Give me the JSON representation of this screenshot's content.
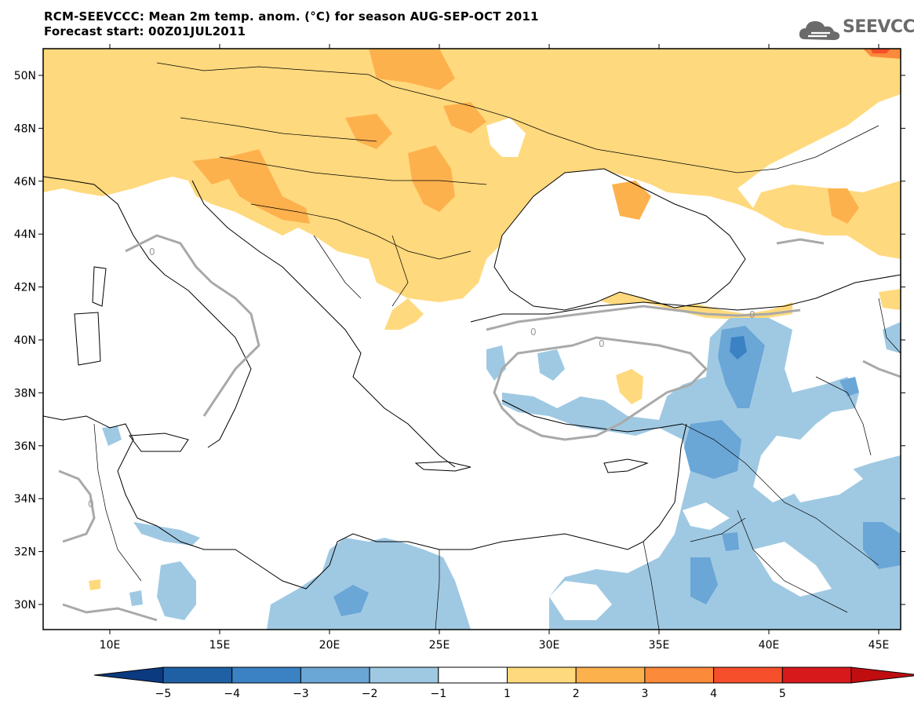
{
  "header": {
    "title_line1": "RCM-SEEVCCC: Mean 2m temp. anom. (°C) for season AUG-SEP-OCT 2011",
    "title_line2": "Forecast start: 00Z01JUL2011"
  },
  "logo": {
    "text": "SEEVCCC",
    "icon": "cloud-logo-icon",
    "color": "#6b6b6b"
  },
  "map": {
    "lon_labels": [
      "10E",
      "15E",
      "20E",
      "25E",
      "30E",
      "35E",
      "40E",
      "45E"
    ],
    "lat_labels": [
      "50N",
      "48N",
      "46N",
      "44N",
      "42N",
      "40N",
      "38N",
      "36N",
      "34N",
      "32N",
      "30N"
    ],
    "contour_label": "0",
    "contour_color": "#a9a9a9",
    "land_outline_color": "#000000"
  },
  "colorbar": {
    "labels": [
      "−5",
      "−4",
      "−3",
      "−2",
      "−1",
      "1",
      "2",
      "3",
      "4",
      "5"
    ],
    "colors": [
      "#1f5fa3",
      "#3a82c3",
      "#6aa6d6",
      "#9fc9e3",
      "#ffffff",
      "#ffd97d",
      "#fdb14d",
      "#fb8a3a",
      "#f5502b",
      "#d7191c"
    ],
    "below_color": "#0b3a80",
    "above_color": "#c00d10"
  }
}
